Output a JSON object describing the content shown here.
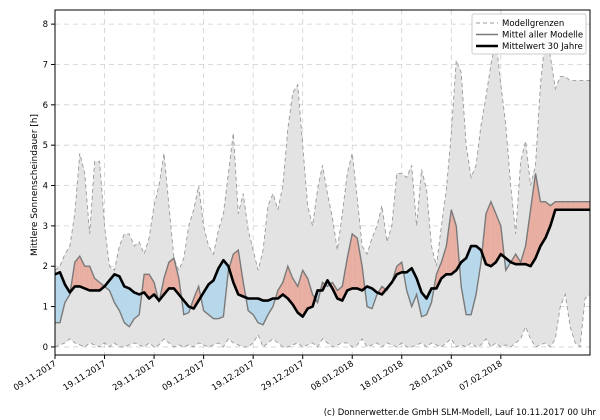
{
  "chart_data": {
    "type": "line",
    "ylabel": "Mittlere Sonnenscheindauer [h]",
    "xlabel": "",
    "ylim": [
      -0.2,
      8.35
    ],
    "yticks": [
      0,
      1,
      2,
      3,
      4,
      5,
      6,
      7,
      8
    ],
    "xlim": [
      0,
      108
    ],
    "xticks": [
      {
        "day": 0,
        "label": "09.11.2017"
      },
      {
        "day": 10,
        "label": "19.11.2017"
      },
      {
        "day": 20,
        "label": "29.11.2017"
      },
      {
        "day": 30,
        "label": "09.12.2017"
      },
      {
        "day": 40,
        "label": "19.12.2017"
      },
      {
        "day": 50,
        "label": "29.12.2017"
      },
      {
        "day": 60,
        "label": "08.01.2018"
      },
      {
        "day": 70,
        "label": "18.01.2018"
      },
      {
        "day": 80,
        "label": "28.01.2018"
      },
      {
        "day": 90,
        "label": "07.02.2018"
      }
    ],
    "grid": true,
    "legend_position": "top-right",
    "legend": [
      {
        "label": "Modellgrenzen",
        "style": "dashed"
      },
      {
        "label": "Mittel aller Modelle",
        "style": "solid-thin"
      },
      {
        "label": "Mittelwert 30 Jahre",
        "style": "solid-thick"
      }
    ],
    "series": [
      {
        "name": "Modellgrenzen (oben)",
        "x": [
          0,
          1,
          2,
          3,
          4,
          5,
          6,
          7,
          8,
          9,
          10,
          11,
          12,
          13,
          14,
          15,
          16,
          17,
          18,
          19,
          20,
          21,
          22,
          23,
          24,
          25,
          26,
          27,
          28,
          29,
          30,
          31,
          32,
          33,
          34,
          35,
          36,
          37,
          38,
          39,
          40,
          41,
          42,
          43,
          44,
          45,
          46,
          47,
          48,
          49,
          50,
          51,
          52,
          53,
          54,
          55,
          56,
          57,
          58,
          59,
          60,
          61,
          62,
          63,
          64,
          65,
          66,
          67,
          68,
          69,
          70,
          71,
          72,
          73,
          74,
          75,
          76,
          77,
          78,
          79,
          80,
          81,
          82,
          83,
          84,
          85,
          86,
          87,
          88,
          89,
          90,
          91,
          92,
          93,
          94,
          95,
          96,
          97,
          98,
          99,
          100,
          101,
          102,
          103,
          104,
          105,
          106,
          107,
          108
        ],
        "values": [
          1.9,
          2.0,
          2.3,
          2.5,
          3.3,
          4.8,
          4.3,
          2.8,
          4.6,
          4.6,
          3.0,
          2.0,
          1.9,
          2.5,
          2.8,
          2.8,
          2.5,
          2.6,
          2.3,
          2.7,
          3.5,
          4.0,
          4.8,
          3.5,
          2.2,
          1.9,
          2.2,
          3.0,
          3.4,
          4.0,
          3.0,
          2.5,
          2.3,
          2.9,
          3.3,
          4.3,
          5.3,
          3.3,
          3.8,
          2.9,
          2.4,
          1.9,
          2.4,
          3.5,
          3.8,
          3.4,
          4.0,
          5.4,
          6.3,
          6.5,
          5.0,
          3.5,
          3.0,
          3.9,
          4.5,
          3.8,
          3.2,
          2.4,
          3.3,
          4.3,
          4.8,
          3.7,
          2.5,
          2.3,
          2.7,
          3.0,
          3.5,
          2.6,
          3.0,
          4.3,
          4.3,
          4.2,
          4.5,
          3.0,
          4.4,
          3.9,
          2.5,
          2.0,
          3.0,
          3.9,
          5.3,
          7.1,
          6.8,
          5.0,
          4.2,
          4.5,
          5.5,
          6.2,
          7.0,
          7.6,
          6.5,
          5.5,
          4.0,
          2.8,
          4.6,
          5.1,
          4.0,
          4.5,
          6.5,
          7.7,
          7.2,
          6.4,
          6.7,
          6.7,
          6.6,
          6.6,
          6.6,
          6.6,
          6.6
        ]
      },
      {
        "name": "Modellgrenzen (unten)",
        "x": [
          0,
          1,
          2,
          3,
          4,
          5,
          6,
          7,
          8,
          9,
          10,
          11,
          12,
          13,
          14,
          15,
          16,
          17,
          18,
          19,
          20,
          21,
          22,
          23,
          24,
          25,
          26,
          27,
          28,
          29,
          30,
          31,
          32,
          33,
          34,
          35,
          36,
          37,
          38,
          39,
          40,
          41,
          42,
          43,
          44,
          45,
          46,
          47,
          48,
          49,
          50,
          51,
          52,
          53,
          54,
          55,
          56,
          57,
          58,
          59,
          60,
          61,
          62,
          63,
          64,
          65,
          66,
          67,
          68,
          69,
          70,
          71,
          72,
          73,
          74,
          75,
          76,
          77,
          78,
          79,
          80,
          81,
          82,
          83,
          84,
          85,
          86,
          87,
          88,
          89,
          90,
          91,
          92,
          93,
          94,
          95,
          96,
          97,
          98,
          99,
          100,
          101,
          102,
          103,
          104,
          105,
          106,
          107,
          108
        ],
        "values": [
          0.0,
          0.05,
          0.1,
          0.2,
          0.1,
          0.05,
          0.0,
          0.1,
          0.05,
          0.0,
          0.1,
          0.0,
          0.1,
          0.0,
          0.0,
          0.05,
          0.1,
          0.05,
          0.0,
          0.1,
          0.0,
          0.05,
          0.2,
          0.1,
          0.0,
          0.05,
          0.0,
          0.05,
          0.0,
          0.1,
          0.05,
          0.0,
          0.05,
          0.1,
          0.0,
          0.2,
          0.1,
          0.05,
          0.0,
          0.0,
          0.1,
          0.3,
          0.0,
          0.1,
          0.2,
          0.1,
          0.0,
          0.0,
          0.05,
          0.1,
          0.0,
          0.05,
          0.1,
          0.0,
          0.2,
          0.1,
          0.0,
          0.05,
          0.1,
          0.1,
          0.0,
          0.05,
          0.2,
          0.0,
          0.05,
          0.1,
          0.0,
          0.1,
          0.05,
          0.0,
          0.1,
          0.0,
          0.0,
          0.05,
          0.1,
          0.0,
          0.1,
          0.05,
          0.0,
          0.1,
          0.2,
          0.0,
          0.05,
          0.0,
          0.1,
          0.0,
          0.05,
          0.2,
          0.0,
          0.1,
          0.0,
          0.05,
          0.0,
          0.1,
          0.2,
          0.5,
          0.2,
          0.0,
          0.05,
          0.1,
          0.0,
          0.2,
          1.0,
          1.3,
          0.5,
          0.1,
          0.0,
          1.2,
          1.3
        ]
      },
      {
        "name": "Mittel aller Modelle",
        "x": [
          0,
          1,
          2,
          3,
          4,
          5,
          6,
          7,
          8,
          9,
          10,
          11,
          12,
          13,
          14,
          15,
          16,
          17,
          18,
          19,
          20,
          21,
          22,
          23,
          24,
          25,
          26,
          27,
          28,
          29,
          30,
          31,
          32,
          33,
          34,
          35,
          36,
          37,
          38,
          39,
          40,
          41,
          42,
          43,
          44,
          45,
          46,
          47,
          48,
          49,
          50,
          51,
          52,
          53,
          54,
          55,
          56,
          57,
          58,
          59,
          60,
          61,
          62,
          63,
          64,
          65,
          66,
          67,
          68,
          69,
          70,
          71,
          72,
          73,
          74,
          75,
          76,
          77,
          78,
          79,
          80,
          81,
          82,
          83,
          84,
          85,
          86,
          87,
          88,
          89,
          90,
          91,
          92,
          93,
          94,
          95,
          96,
          97,
          98,
          99,
          100,
          101,
          102,
          103,
          104,
          105,
          106,
          107,
          108
        ],
        "values": [
          0.6,
          0.6,
          1.1,
          1.3,
          2.1,
          2.25,
          2.0,
          2.0,
          1.7,
          1.6,
          1.5,
          1.4,
          1.1,
          0.9,
          0.6,
          0.5,
          0.7,
          0.8,
          1.8,
          1.8,
          1.6,
          1.1,
          1.7,
          2.1,
          2.2,
          1.7,
          0.8,
          0.85,
          1.2,
          1.5,
          0.9,
          0.8,
          0.7,
          0.7,
          0.75,
          1.9,
          2.3,
          2.4,
          1.6,
          0.9,
          0.8,
          0.6,
          0.55,
          0.8,
          1.0,
          1.4,
          1.6,
          2.0,
          1.7,
          1.5,
          1.9,
          1.7,
          1.3,
          1.1,
          1.6,
          1.5,
          1.6,
          1.4,
          1.5,
          2.2,
          2.8,
          2.7,
          2.0,
          1.0,
          0.95,
          1.3,
          1.5,
          1.4,
          1.6,
          2.0,
          2.1,
          1.4,
          1.0,
          1.3,
          0.75,
          0.8,
          1.1,
          1.8,
          2.1,
          2.5,
          3.4,
          3.0,
          1.5,
          0.8,
          0.8,
          1.3,
          2.1,
          3.3,
          3.6,
          3.3,
          3.0,
          1.9,
          2.1,
          2.3,
          2.1,
          2.5,
          3.4,
          4.3,
          3.6,
          3.6,
          3.5,
          3.6,
          3.6,
          3.6,
          3.6,
          3.6,
          3.6,
          3.6,
          3.6
        ]
      },
      {
        "name": "Mittelwert 30 Jahre",
        "x": [
          0,
          1,
          2,
          3,
          4,
          5,
          6,
          7,
          8,
          9,
          10,
          11,
          12,
          13,
          14,
          15,
          16,
          17,
          18,
          19,
          20,
          21,
          22,
          23,
          24,
          25,
          26,
          27,
          28,
          29,
          30,
          31,
          32,
          33,
          34,
          35,
          36,
          37,
          38,
          39,
          40,
          41,
          42,
          43,
          44,
          45,
          46,
          47,
          48,
          49,
          50,
          51,
          52,
          53,
          54,
          55,
          56,
          57,
          58,
          59,
          60,
          61,
          62,
          63,
          64,
          65,
          66,
          67,
          68,
          69,
          70,
          71,
          72,
          73,
          74,
          75,
          76,
          77,
          78,
          79,
          80,
          81,
          82,
          83,
          84,
          85,
          86,
          87,
          88,
          89,
          90,
          91,
          92,
          93,
          94,
          95,
          96,
          97,
          98,
          99,
          100,
          101,
          102,
          103,
          104,
          105,
          106,
          107,
          108
        ],
        "values": [
          1.8,
          1.85,
          1.55,
          1.35,
          1.5,
          1.5,
          1.45,
          1.4,
          1.4,
          1.4,
          1.5,
          1.65,
          1.8,
          1.75,
          1.5,
          1.45,
          1.35,
          1.3,
          1.35,
          1.2,
          1.3,
          1.15,
          1.3,
          1.45,
          1.45,
          1.3,
          1.15,
          1.0,
          0.95,
          1.15,
          1.35,
          1.55,
          1.65,
          1.95,
          2.15,
          2.0,
          1.6,
          1.3,
          1.25,
          1.2,
          1.2,
          1.2,
          1.15,
          1.15,
          1.2,
          1.2,
          1.3,
          1.2,
          1.05,
          0.85,
          0.75,
          0.95,
          1.0,
          1.4,
          1.4,
          1.65,
          1.45,
          1.2,
          1.15,
          1.4,
          1.45,
          1.45,
          1.4,
          1.5,
          1.45,
          1.35,
          1.3,
          1.45,
          1.6,
          1.8,
          1.85,
          1.85,
          1.95,
          1.7,
          1.35,
          1.2,
          1.45,
          1.45,
          1.7,
          1.8,
          1.8,
          1.9,
          2.1,
          2.2,
          2.5,
          2.5,
          2.4,
          2.05,
          2.0,
          2.1,
          2.3,
          2.2,
          2.1,
          2.05,
          2.05,
          2.05,
          2.0,
          2.2,
          2.5,
          2.7,
          3.0,
          3.4,
          3.4,
          3.4,
          3.4,
          3.4,
          3.4,
          3.4,
          3.4
        ]
      }
    ],
    "colors": {
      "envelope_fill": "#e3e3e3",
      "envelope_line": "#999999",
      "above_fill": "#e8aea1",
      "below_fill": "#b7d7ea",
      "model_line": "#7a7a7a",
      "mean_line": "#000000",
      "grid": "#cfcfcf"
    }
  },
  "footer": {
    "credit": "(c) Donnerwetter.de GmbH SLM-Modell, Lauf 10.11.2017 00 Uhr"
  }
}
